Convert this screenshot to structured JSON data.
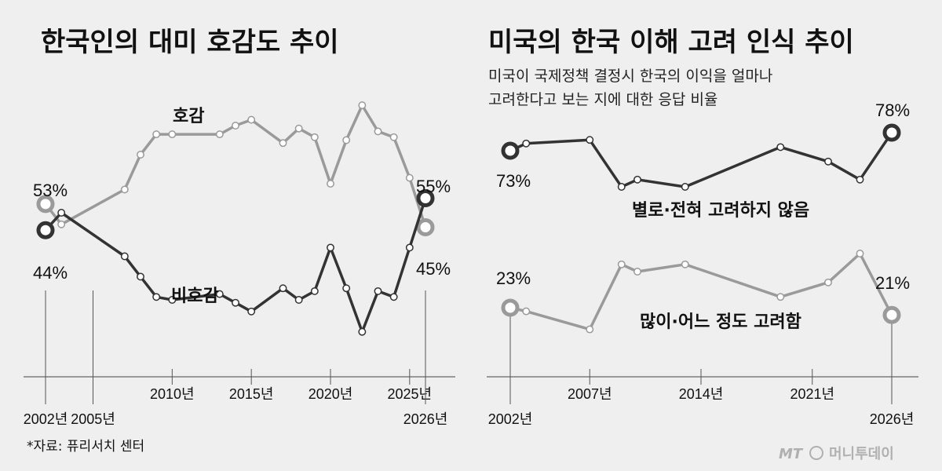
{
  "colors": {
    "favorable": "#9a9a9a",
    "unfavorable": "#333333",
    "background": "#efefef"
  },
  "source": "*자료: 퓨리서치 센터",
  "brand": {
    "mark": "MT",
    "name": "머니투데이"
  },
  "chart_data": [
    {
      "type": "line",
      "title": "한국인의 대미 호감도 추이",
      "x_tick_labels": [
        "2002년",
        "2005년",
        "2010년",
        "2015년",
        "2020년",
        "2025년",
        "2026년"
      ],
      "x_ticks": [
        2002,
        2005,
        2010,
        2015,
        2020,
        2025,
        2026
      ],
      "series": [
        {
          "name": "호감",
          "x": [
            2002,
            2003,
            2007,
            2008,
            2009,
            2010,
            2013,
            2014,
            2015,
            2017,
            2018,
            2019,
            2020,
            2021,
            2022,
            2023,
            2024,
            2025,
            2026
          ],
          "values": [
            53,
            46,
            58,
            70,
            77,
            77,
            77,
            80,
            82,
            74,
            79,
            76,
            60,
            75,
            87,
            78,
            76,
            62,
            45
          ],
          "start_label": "53%",
          "end_label": "45%"
        },
        {
          "name": "비호감",
          "x": [
            2002,
            2003,
            2007,
            2008,
            2009,
            2010,
            2013,
            2014,
            2015,
            2017,
            2018,
            2019,
            2020,
            2021,
            2022,
            2023,
            2024,
            2025,
            2026
          ],
          "values": [
            44,
            50,
            35,
            28,
            21,
            20,
            22,
            19,
            16,
            24,
            20,
            23,
            38,
            24,
            9,
            23,
            21,
            38,
            55
          ],
          "start_label": "44%",
          "end_label": "55%"
        }
      ]
    },
    {
      "type": "line",
      "title": "미국의 한국 이해 고려 인식 추이",
      "subtitle": [
        "미국이 국제정책 결정시 한국의 이익을 얼마나",
        "고려한다고 보는 지에 대한 응답 비율"
      ],
      "x_tick_labels": [
        "2002년",
        "2007년",
        "2014년",
        "2021년",
        "2026년"
      ],
      "x_ticks": [
        2002,
        2007,
        2014,
        2021,
        2026
      ],
      "series": [
        {
          "name": "별로·전혀 고려하지 않음",
          "x": [
            2002,
            2003,
            2007,
            2009,
            2010,
            2013,
            2019,
            2022,
            2024,
            2026
          ],
          "values": [
            73,
            75,
            76,
            63,
            65,
            63,
            74,
            70,
            65,
            78
          ],
          "start_label": "73%",
          "end_label": "78%"
        },
        {
          "name": "많이·어느 정도 고려함",
          "x": [
            2002,
            2003,
            2007,
            2009,
            2010,
            2013,
            2019,
            2022,
            2024,
            2026
          ],
          "values": [
            23,
            22,
            17,
            35,
            33,
            35,
            26,
            30,
            38,
            21
          ],
          "start_label": "23%",
          "end_label": "21%"
        }
      ]
    }
  ]
}
